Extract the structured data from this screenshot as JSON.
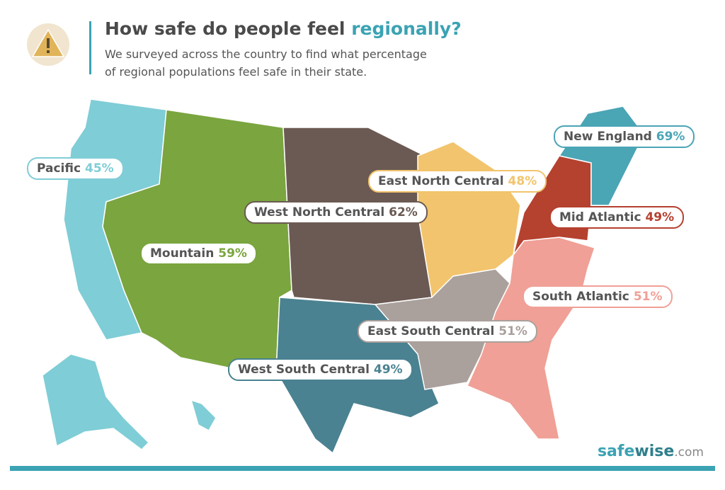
{
  "header": {
    "title": "How safe do people feel",
    "title_highlight": "regionally?",
    "subtitle_lines": [
      "We surveyed across the country to find what percentage",
      "of regional populations feel safe in their state."
    ]
  },
  "regions": [
    {
      "name": "Pacific",
      "percent": "45%",
      "color": "#7fcdd6"
    },
    {
      "name": "New England",
      "percent": "69%",
      "color": "#4aa5b5"
    },
    {
      "name": "East North Central",
      "percent": "48%",
      "color": "#f2c46d"
    },
    {
      "name": "West North Central",
      "percent": "62%",
      "color": "#6b5a53"
    },
    {
      "name": "Mid Atlantic",
      "percent": "49%",
      "color": "#b5412f"
    },
    {
      "name": "Mountain",
      "percent": "59%",
      "color": "#7aa53f"
    },
    {
      "name": "South Atlantic",
      "percent": "51%",
      "color": "#f0a096"
    },
    {
      "name": "East South Central",
      "percent": "51%",
      "color": "#aaa09c"
    },
    {
      "name": "West South Central",
      "percent": "49%",
      "color": "#4a8291"
    }
  ],
  "logo": {
    "part1": "safe",
    "part2": "wise",
    "part3": ".com"
  }
}
